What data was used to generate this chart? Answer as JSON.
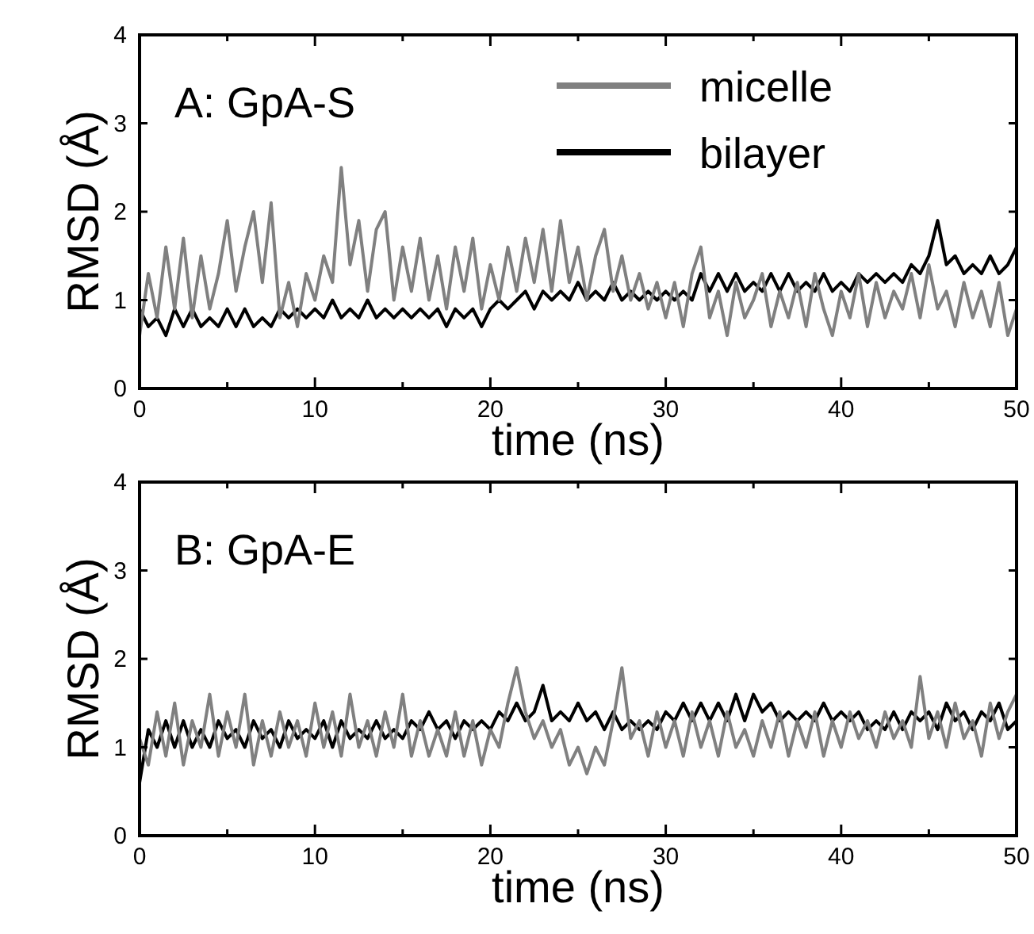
{
  "chart_data": [
    {
      "type": "line",
      "annotations": [
        "A: GpA-S"
      ],
      "xlabel": "time (ns)",
      "ylabel": "RMSD (Å)",
      "xlim": [
        0,
        50
      ],
      "ylim": [
        0,
        4
      ],
      "xticks": [
        0,
        {
          "value": 5,
          "label": null
        },
        10,
        {
          "value": 15,
          "label": null
        },
        20,
        {
          "value": 25,
          "label": null
        },
        30,
        {
          "value": 35,
          "label": null
        },
        40,
        {
          "value": 45,
          "label": null
        },
        50
      ],
      "yticks": [
        0,
        1,
        2,
        3,
        4
      ],
      "legend": "top right",
      "grid": false,
      "marker": "none",
      "line_style": "solid",
      "x": [
        0,
        0.5,
        1,
        1.5,
        2,
        2.5,
        3,
        3.5,
        4,
        4.5,
        5,
        5.5,
        6,
        6.5,
        7,
        7.5,
        8,
        8.5,
        9,
        9.5,
        10,
        10.5,
        11,
        11.5,
        12,
        12.5,
        13,
        13.5,
        14,
        14.5,
        15,
        15.5,
        16,
        16.5,
        17,
        17.5,
        18,
        18.5,
        19,
        19.5,
        20,
        20.5,
        21,
        21.5,
        22,
        22.5,
        23,
        23.5,
        24,
        24.5,
        25,
        25.5,
        26,
        26.5,
        27,
        27.5,
        28,
        28.5,
        29,
        29.5,
        30,
        30.5,
        31,
        31.5,
        32,
        32.5,
        33,
        33.5,
        34,
        34.5,
        35,
        35.5,
        36,
        36.5,
        37,
        37.5,
        38,
        38.5,
        39,
        39.5,
        40,
        40.5,
        41,
        41.5,
        42,
        42.5,
        43,
        43.5,
        44,
        44.5,
        45,
        45.5,
        46,
        46.5,
        47,
        47.5,
        48,
        48.5,
        49,
        49.5,
        50
      ],
      "series": [
        {
          "name": "bilayer",
          "color": "#000000",
          "values": [
            0.9,
            0.7,
            0.8,
            0.6,
            0.9,
            0.7,
            0.9,
            0.7,
            0.8,
            0.7,
            0.9,
            0.7,
            0.9,
            0.7,
            0.8,
            0.7,
            0.9,
            0.8,
            0.9,
            0.8,
            0.9,
            0.8,
            1.0,
            0.8,
            0.9,
            0.8,
            1.0,
            0.8,
            0.9,
            0.8,
            0.9,
            0.8,
            0.9,
            0.8,
            0.9,
            0.7,
            0.9,
            0.8,
            0.9,
            0.7,
            0.9,
            1.0,
            0.9,
            1.0,
            1.1,
            0.9,
            1.1,
            1.0,
            1.1,
            1.0,
            1.2,
            1.0,
            1.1,
            1.0,
            1.2,
            1.0,
            1.1,
            1.0,
            1.1,
            1.0,
            1.1,
            1.0,
            1.1,
            1.0,
            1.3,
            1.1,
            1.3,
            1.1,
            1.3,
            1.1,
            1.2,
            1.1,
            1.3,
            1.1,
            1.3,
            1.1,
            1.2,
            1.1,
            1.3,
            1.1,
            1.2,
            1.1,
            1.3,
            1.2,
            1.3,
            1.2,
            1.3,
            1.2,
            1.4,
            1.3,
            1.5,
            1.9,
            1.4,
            1.5,
            1.3,
            1.4,
            1.3,
            1.5,
            1.3,
            1.4,
            1.6
          ]
        },
        {
          "name": "micelle",
          "color": "#808080",
          "values": [
            0.6,
            1.3,
            0.8,
            1.6,
            0.9,
            1.7,
            0.8,
            1.5,
            0.9,
            1.3,
            1.9,
            1.1,
            1.6,
            2.0,
            1.2,
            2.1,
            0.8,
            1.2,
            0.7,
            1.3,
            1.0,
            1.5,
            1.2,
            2.5,
            1.4,
            1.9,
            1.1,
            1.8,
            2.0,
            1.0,
            1.6,
            1.1,
            1.7,
            1.0,
            1.5,
            0.9,
            1.6,
            1.1,
            1.7,
            0.9,
            1.4,
            1.0,
            1.6,
            1.1,
            1.7,
            1.2,
            1.8,
            1.1,
            1.9,
            1.2,
            1.6,
            1.0,
            1.5,
            1.8,
            1.1,
            1.5,
            1.0,
            1.3,
            0.9,
            1.2,
            0.8,
            1.2,
            0.7,
            1.3,
            1.6,
            0.8,
            1.1,
            0.6,
            1.2,
            0.8,
            1.0,
            1.3,
            0.7,
            1.1,
            0.8,
            1.2,
            0.7,
            1.3,
            0.9,
            0.6,
            1.1,
            0.8,
            1.3,
            0.7,
            1.2,
            0.8,
            1.1,
            0.9,
            1.3,
            0.8,
            1.4,
            0.9,
            1.1,
            0.7,
            1.2,
            0.8,
            1.1,
            0.7,
            1.2,
            0.6,
            0.9
          ]
        }
      ]
    },
    {
      "type": "line",
      "annotations": [
        "B: GpA-E"
      ],
      "xlabel": "time (ns)",
      "ylabel": "RMSD (Å)",
      "xlim": [
        0,
        50
      ],
      "ylim": [
        0,
        4
      ],
      "xticks": [
        0,
        {
          "value": 5,
          "label": null
        },
        10,
        {
          "value": 15,
          "label": null
        },
        20,
        {
          "value": 25,
          "label": null
        },
        30,
        {
          "value": 35,
          "label": null
        },
        40,
        {
          "value": 45,
          "label": null
        },
        50
      ],
      "yticks": [
        0,
        1,
        2,
        3,
        4
      ],
      "legend": false,
      "grid": false,
      "marker": "none",
      "line_style": "solid",
      "x": [
        0,
        0.5,
        1,
        1.5,
        2,
        2.5,
        3,
        3.5,
        4,
        4.5,
        5,
        5.5,
        6,
        6.5,
        7,
        7.5,
        8,
        8.5,
        9,
        9.5,
        10,
        10.5,
        11,
        11.5,
        12,
        12.5,
        13,
        13.5,
        14,
        14.5,
        15,
        15.5,
        16,
        16.5,
        17,
        17.5,
        18,
        18.5,
        19,
        19.5,
        20,
        20.5,
        21,
        21.5,
        22,
        22.5,
        23,
        23.5,
        24,
        24.5,
        25,
        25.5,
        26,
        26.5,
        27,
        27.5,
        28,
        28.5,
        29,
        29.5,
        30,
        30.5,
        31,
        31.5,
        32,
        32.5,
        33,
        33.5,
        34,
        34.5,
        35,
        35.5,
        36,
        36.5,
        37,
        37.5,
        38,
        38.5,
        39,
        39.5,
        40,
        40.5,
        41,
        41.5,
        42,
        42.5,
        43,
        43.5,
        44,
        44.5,
        45,
        45.5,
        46,
        46.5,
        47,
        47.5,
        48,
        48.5,
        49,
        49.5,
        50
      ],
      "series": [
        {
          "color": "#000000",
          "values": [
            0.6,
            1.2,
            1.0,
            1.3,
            1.0,
            1.3,
            1.0,
            1.2,
            1.0,
            1.3,
            1.1,
            1.2,
            1.0,
            1.3,
            1.1,
            1.2,
            1.0,
            1.3,
            1.1,
            1.2,
            1.1,
            1.3,
            1.0,
            1.3,
            1.1,
            1.2,
            1.1,
            1.3,
            1.1,
            1.2,
            1.1,
            1.3,
            1.2,
            1.4,
            1.2,
            1.3,
            1.1,
            1.3,
            1.2,
            1.3,
            1.2,
            1.4,
            1.3,
            1.5,
            1.3,
            1.4,
            1.7,
            1.3,
            1.4,
            1.3,
            1.5,
            1.3,
            1.4,
            1.2,
            1.4,
            1.2,
            1.3,
            1.2,
            1.3,
            1.2,
            1.4,
            1.3,
            1.5,
            1.3,
            1.5,
            1.3,
            1.5,
            1.3,
            1.6,
            1.3,
            1.6,
            1.4,
            1.5,
            1.3,
            1.4,
            1.3,
            1.4,
            1.3,
            1.5,
            1.3,
            1.4,
            1.3,
            1.4,
            1.2,
            1.3,
            1.2,
            1.4,
            1.2,
            1.4,
            1.3,
            1.4,
            1.2,
            1.5,
            1.3,
            1.4,
            1.2,
            1.4,
            1.3,
            1.5,
            1.2,
            1.3
          ]
        },
        {
          "color": "#808080",
          "values": [
            1.1,
            0.8,
            1.4,
            0.9,
            1.5,
            0.8,
            1.3,
            1.0,
            1.6,
            0.9,
            1.4,
            1.0,
            1.6,
            0.8,
            1.3,
            0.9,
            1.4,
            1.0,
            1.3,
            0.9,
            1.5,
            1.0,
            1.4,
            0.9,
            1.6,
            1.0,
            1.3,
            0.9,
            1.4,
            1.0,
            1.6,
            0.9,
            1.3,
            0.9,
            1.2,
            0.9,
            1.4,
            0.9,
            1.3,
            0.8,
            1.2,
            1.0,
            1.5,
            1.9,
            1.4,
            1.1,
            1.3,
            1.0,
            1.2,
            0.8,
            1.0,
            0.7,
            1.0,
            0.8,
            1.3,
            1.9,
            1.1,
            1.3,
            0.9,
            1.4,
            1.0,
            1.3,
            0.9,
            1.4,
            1.0,
            1.3,
            0.9,
            1.4,
            1.0,
            1.2,
            0.9,
            1.3,
            1.0,
            1.4,
            0.9,
            1.3,
            1.0,
            1.4,
            0.9,
            1.3,
            1.0,
            1.4,
            1.1,
            1.3,
            1.0,
            1.4,
            1.1,
            1.3,
            1.0,
            1.8,
            1.1,
            1.4,
            1.0,
            1.5,
            1.1,
            1.3,
            0.9,
            1.5,
            1.1,
            1.4,
            1.6
          ]
        }
      ]
    }
  ]
}
